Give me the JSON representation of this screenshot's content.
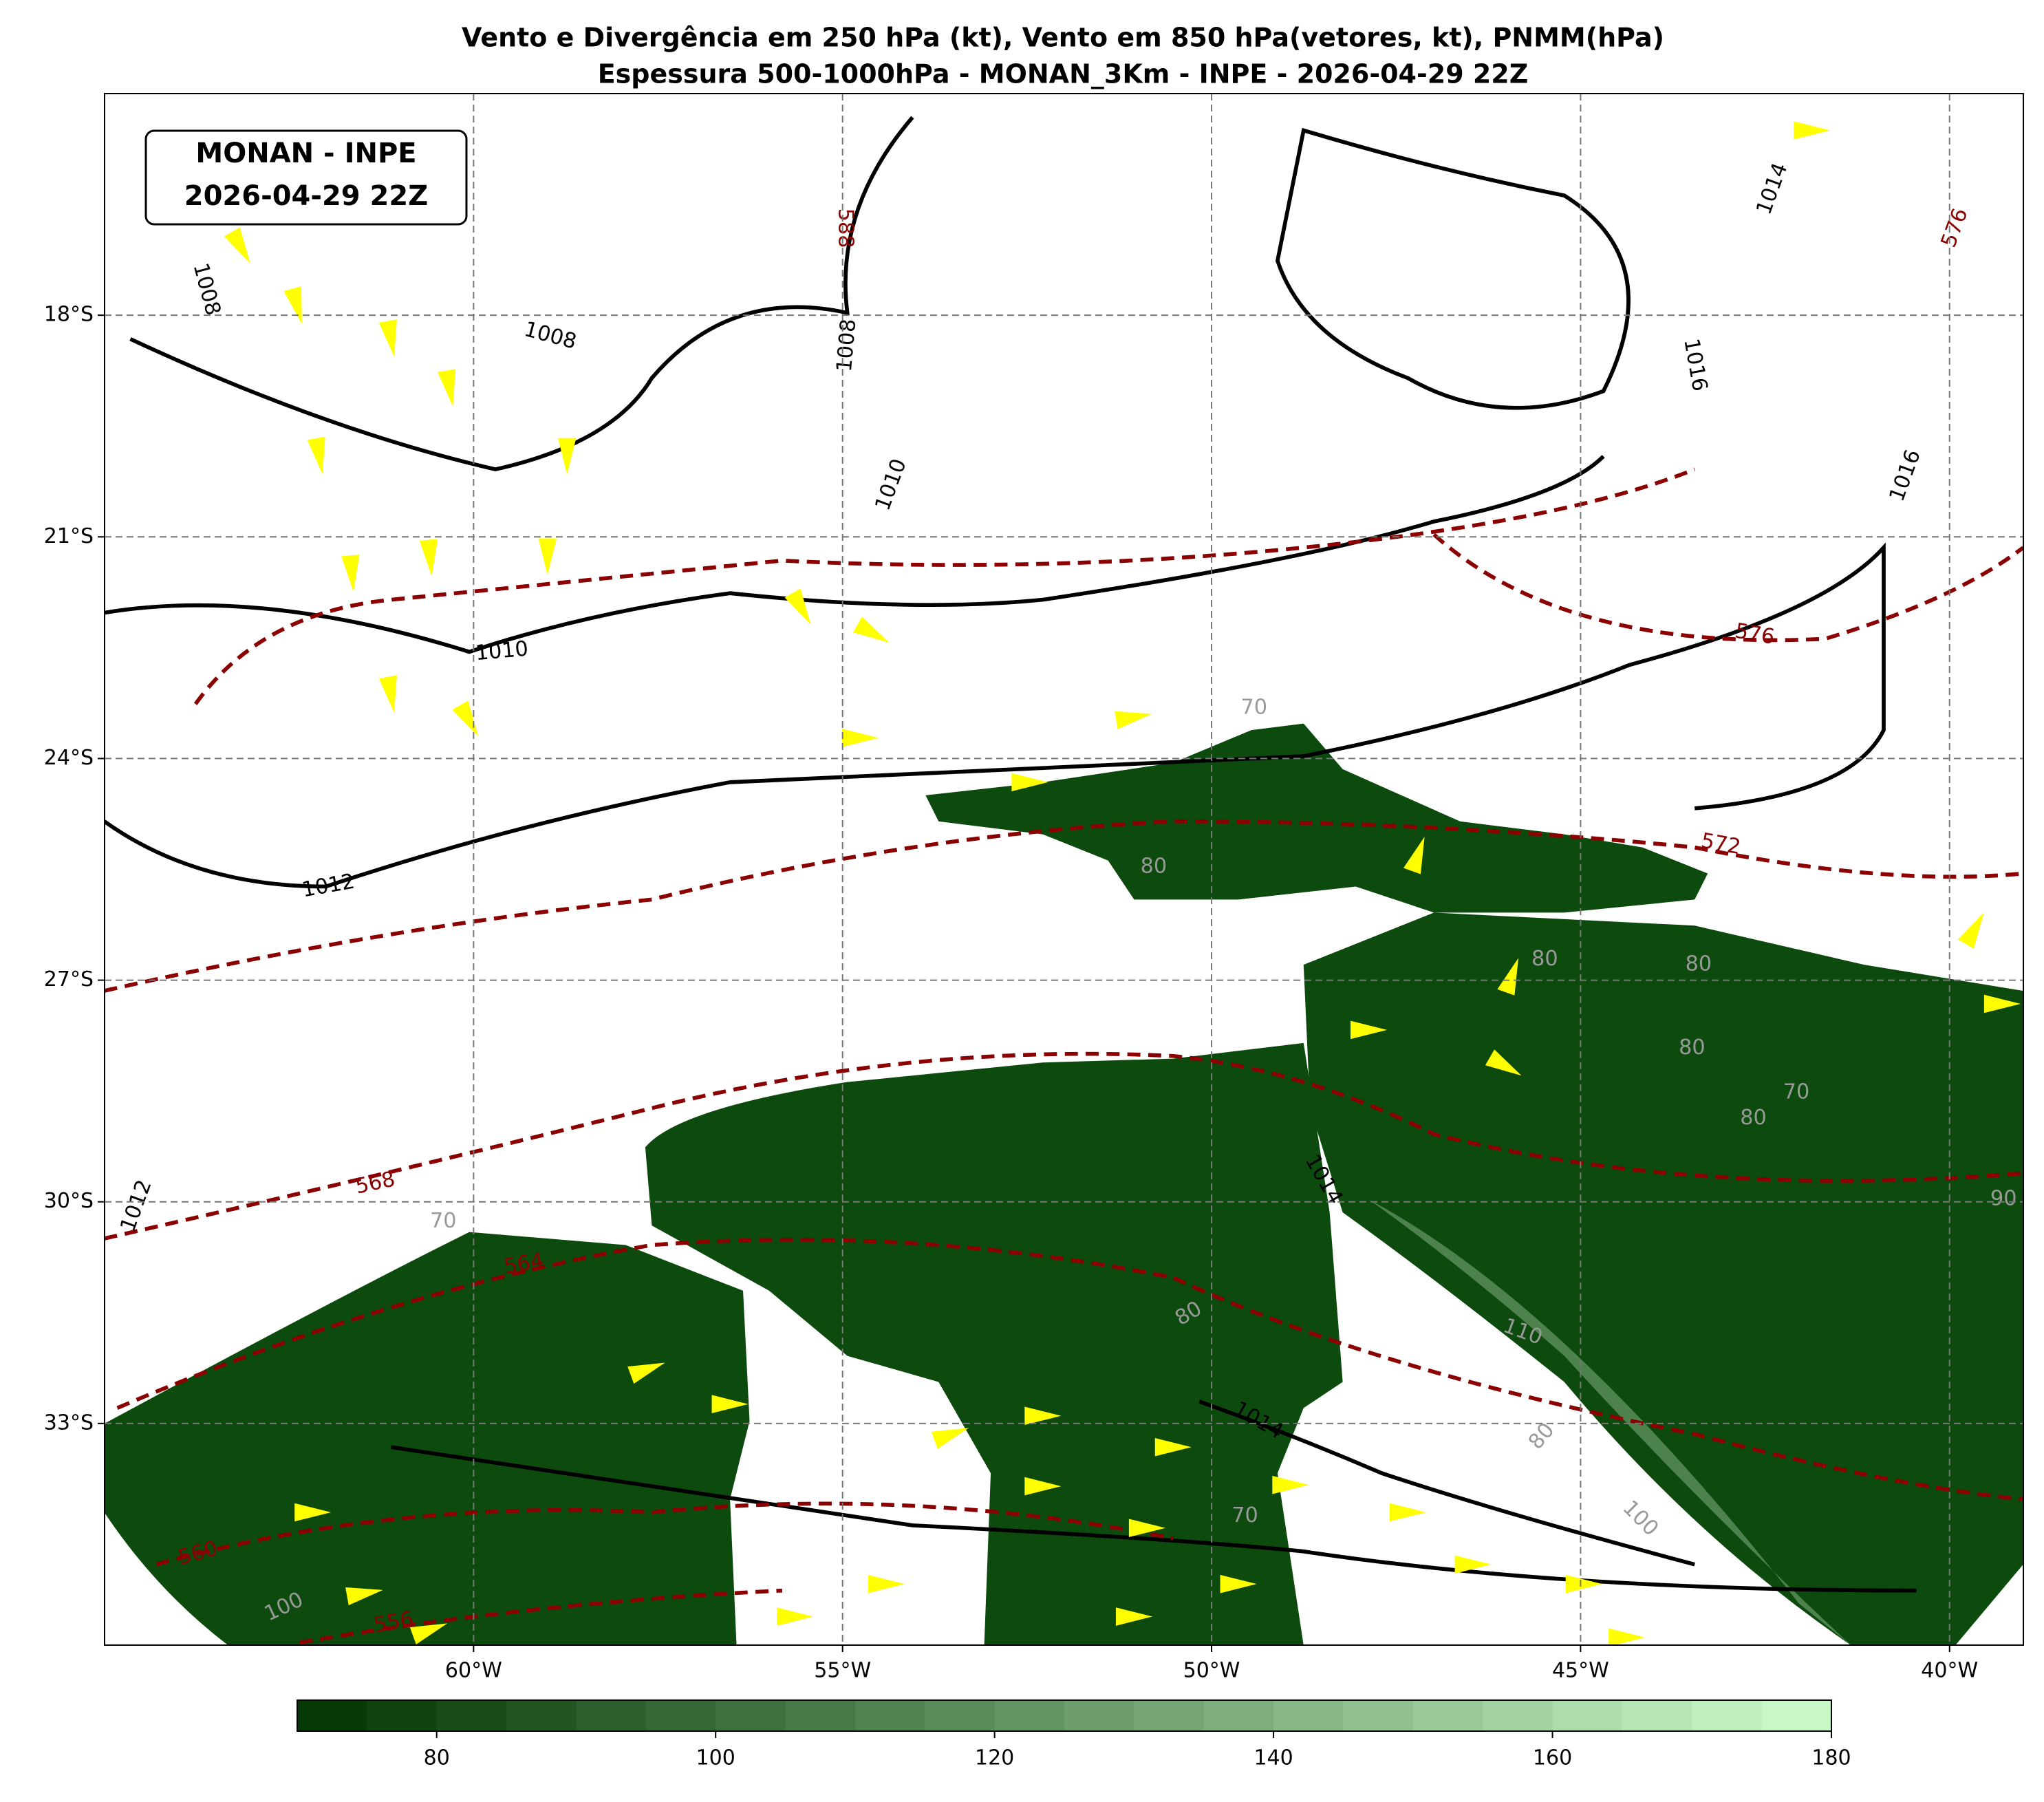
{
  "header": {
    "title_line1": "Vento e Divergência em 250 hPa (kt), Vento em 850 hPa(vetores, kt), PNMM(hPa)",
    "title_line2": "Espessura 500-1000hPa - MONAN_3Km - INPE - 2026-04-29 22Z"
  },
  "legend_box": {
    "line1": "MONAN - INPE",
    "line2": "2026-04-29 22Z"
  },
  "map": {
    "xlim": [
      -65,
      -39
    ],
    "ylim": [
      -36,
      -15
    ],
    "grid": true,
    "xticks": [
      {
        "value": -60,
        "label": "60°W"
      },
      {
        "value": -55,
        "label": "55°W"
      },
      {
        "value": -50,
        "label": "50°W"
      },
      {
        "value": -45,
        "label": "45°W"
      },
      {
        "value": -40,
        "label": "40°W"
      }
    ],
    "yticks": [
      {
        "value": -18,
        "label": "18°S"
      },
      {
        "value": -21,
        "label": "21°S"
      },
      {
        "value": -24,
        "label": "24°S"
      },
      {
        "value": -27,
        "label": "27°S"
      },
      {
        "value": -30,
        "label": "30°S"
      },
      {
        "value": -33,
        "label": "33°S"
      }
    ]
  },
  "contour_labels": {
    "pressure": [
      1008,
      1008,
      1008,
      1010,
      1010,
      1012,
      1012,
      1014,
      1014,
      1014,
      1016,
      1016
    ],
    "thickness": [
      568,
      564,
      560,
      556,
      572,
      576,
      576,
      588
    ],
    "wind": [
      70,
      80,
      100,
      110,
      80,
      100,
      80,
      80,
      80,
      80,
      70,
      80,
      90,
      70,
      70
    ]
  },
  "colorbar": {
    "lim": [
      70,
      180
    ],
    "ticks": [
      80,
      100,
      120,
      140,
      160,
      180
    ],
    "colors": [
      "#083a08",
      "#c8f7c8"
    ],
    "levels": [
      70,
      75,
      80,
      85,
      90,
      95,
      100,
      105,
      110,
      115,
      120,
      125,
      130,
      135,
      140,
      145,
      150,
      155,
      160,
      165,
      170,
      175,
      180
    ]
  }
}
